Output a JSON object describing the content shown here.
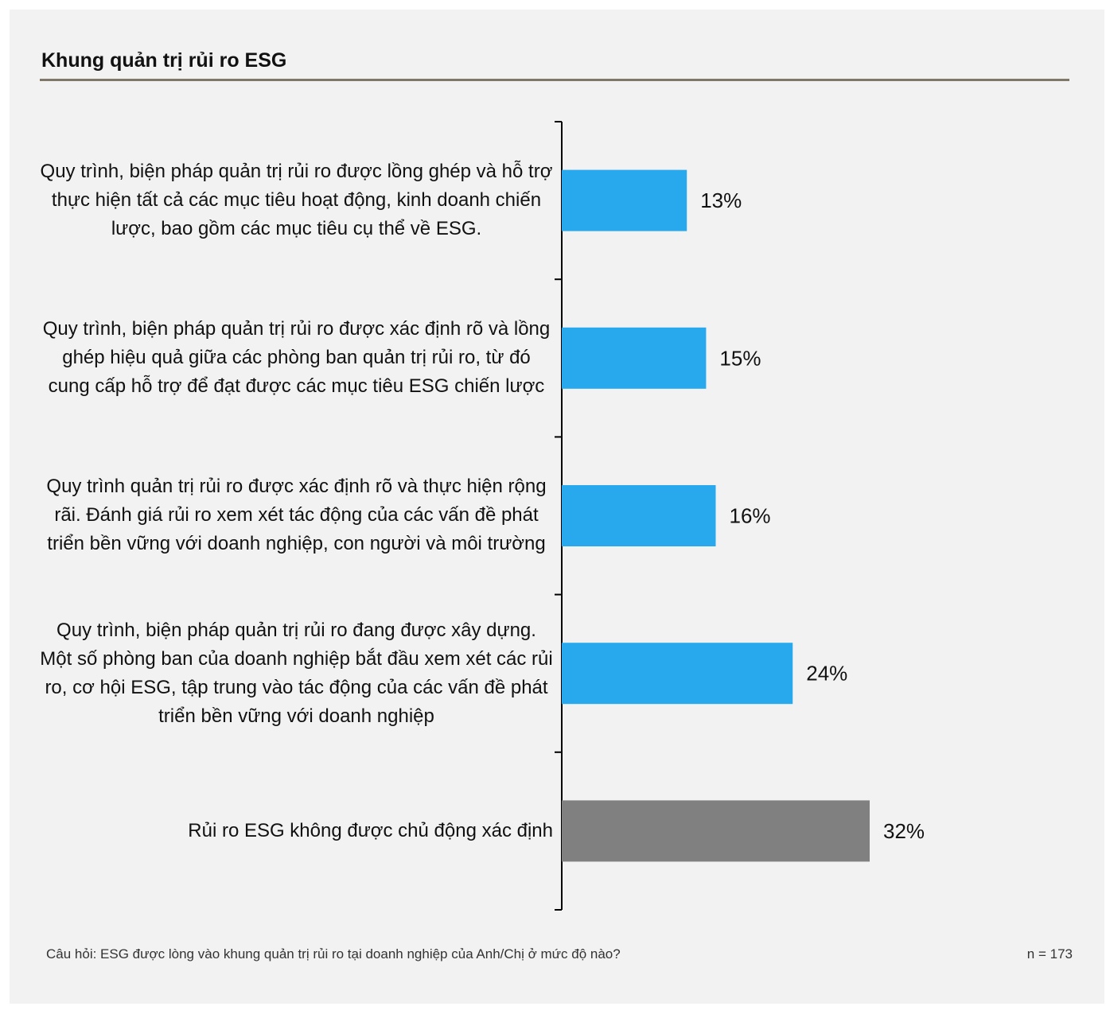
{
  "header": {
    "title": "Khung quản trị rủi ro ESG"
  },
  "chart_data": {
    "type": "bar",
    "orientation": "horizontal",
    "categories": [
      "Quy trình, biện pháp quản trị rủi ro được lồng ghép và hỗ trợ thực hiện tất cả các mục tiêu hoạt động, kinh doanh chiến lược, bao gồm các mục tiêu cụ thể về ESG.",
      "Quy trình, biện pháp quản trị rủi ro được xác định rõ và lồng ghép hiệu quả giữa các phòng ban quản trị rủi ro, từ đó cung cấp hỗ trợ để đạt được các mục tiêu ESG chiến lược",
      "Quy trình quản trị rủi ro được xác định rõ và thực hiện rộng rãi. Đánh giá rủi ro xem xét tác động của các vấn đề phát triển bền vững với doanh nghiệp, con người và môi trường",
      "Quy trình, biện pháp quản trị rủi ro đang được xây dựng. Một số phòng ban của doanh nghiệp bắt đầu xem xét các rủi ro, cơ hội ESG, tập trung vào tác động của các vấn đề phát triển bền vững với doanh nghiệp",
      "Rủi ro ESG không được chủ động xác định"
    ],
    "values": [
      13,
      15,
      16,
      24,
      32
    ],
    "value_labels": [
      "13%",
      "15%",
      "16%",
      "24%",
      "32%"
    ],
    "bar_colors": [
      "#29a9ed",
      "#29a9ed",
      "#29a9ed",
      "#29a9ed",
      "#808080"
    ],
    "xlim": [
      0,
      100
    ],
    "grid": false,
    "xlabel": "",
    "ylabel": ""
  },
  "footer": {
    "question": "Câu hỏi: ESG được lòng vào khung quản trị rủi ro tại doanh nghiệp của Anh/Chị ở mức độ nào?",
    "sample": "n = 173"
  }
}
